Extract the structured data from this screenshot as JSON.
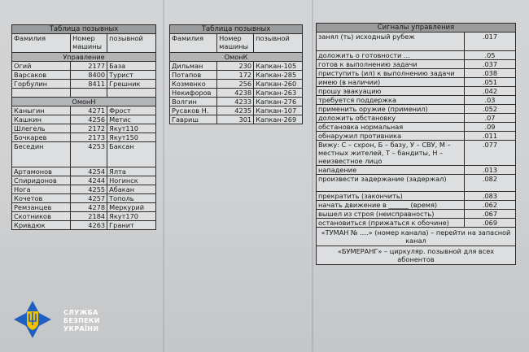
{
  "left_table": {
    "title": "Таблица позывных",
    "headers": [
      "Фамилия",
      "Номер машины",
      "позывной"
    ],
    "sections": [
      {
        "name": "Управление",
        "rows": [
          [
            "Огий",
            "2177",
            "База"
          ],
          [
            "Варсаков",
            "8400",
            "Турист"
          ],
          [
            "Горбулин",
            "8411",
            "Грешник"
          ],
          [
            "",
            "",
            ""
          ]
        ]
      },
      {
        "name": "ОмонН",
        "rows": [
          [
            "Каныгин",
            "4271",
            "Фрост"
          ],
          [
            "Кашкин",
            "4256",
            "Метис"
          ],
          [
            "Шлегель",
            "2172",
            "Якут110"
          ],
          [
            "Бочкарев",
            "2173",
            "Якут150"
          ],
          [
            "Беседин",
            "4253",
            "Баксан"
          ],
          [
            "Артамонов",
            "4254",
            "Ялта"
          ],
          [
            "Спиридонов",
            "4244",
            "Ногинск"
          ],
          [
            "Нога",
            "4255",
            "Абакан"
          ],
          [
            "Кочетов",
            "4257",
            "Тополь"
          ],
          [
            "Ремзанцев",
            "4278",
            "Меркурий"
          ],
          [
            "Скотников",
            "2184",
            "Якут170"
          ],
          [
            "Кривдюк",
            "4263",
            "Гранит"
          ]
        ]
      }
    ]
  },
  "middle_table": {
    "title": "Таблица позывных",
    "headers": [
      "Фамилия",
      "Номер машины",
      "позывной"
    ],
    "sections": [
      {
        "name": "ОмонК",
        "rows": [
          [
            "Дильман",
            "230",
            "Капкан-105"
          ],
          [
            "Потапов",
            "172",
            "Капкан-285"
          ],
          [
            "Козменко",
            "256",
            "Капкан-260"
          ],
          [
            "Некифоров",
            "4238",
            "Капкан-263"
          ],
          [
            "Волгин",
            "4233",
            "Капкан-276"
          ],
          [
            "Русаков Н.",
            "4235",
            "Капкан-107"
          ],
          [
            "Гавриш",
            "301",
            "Капкан-269"
          ]
        ]
      }
    ]
  },
  "signals_table": {
    "title": "Сигналы управления",
    "rows": [
      [
        "занял (ть) исходный рубеж",
        ".017"
      ],
      [
        "доложить о готовности ...",
        ".05"
      ],
      [
        "готов к выполнению задачи",
        ".037"
      ],
      [
        "приступить (ил) к выполнению задачи",
        ".038"
      ],
      [
        "имею (в наличии)",
        ".051"
      ],
      [
        "прошу эвакуацию",
        ".042"
      ],
      [
        "требуется поддержка",
        ".03"
      ],
      [
        "применить оружие (применил)",
        ".052"
      ],
      [
        "доложить обстановку",
        ".07"
      ],
      [
        "обстановка нормальная",
        ".09"
      ],
      [
        "обнаружил противника",
        ".011"
      ],
      [
        "Вижу: С – схрон, Б – базу, У – СВУ, М – местных жителей, Т – бандиты, Н – неизвестное лицо",
        ".077"
      ],
      [
        "нападение",
        ".013"
      ],
      [
        "произвести задержание (задержал)",
        ".082"
      ],
      [
        "прекратить (закончить)",
        ".083"
      ],
      [
        "начать движение в ______ (время)",
        ".062"
      ],
      [
        "вышел из строя (неисправность)",
        ".067"
      ],
      [
        "остановиться (прижаться к обочине)",
        ".069"
      ]
    ],
    "notes": [
      "«ТУМАН № ....» (номер канала) – перейти на запасной канал",
      "«БУМЕРАНГ» – циркуляр. позывной для всех абонентов"
    ]
  },
  "watermark": {
    "text_lines": [
      "СЛУЖБА",
      "БЕЗПЕКИ",
      "УКРАЇНИ"
    ],
    "emblem": "trident-shield-icon",
    "color": "#1f5fbf"
  }
}
